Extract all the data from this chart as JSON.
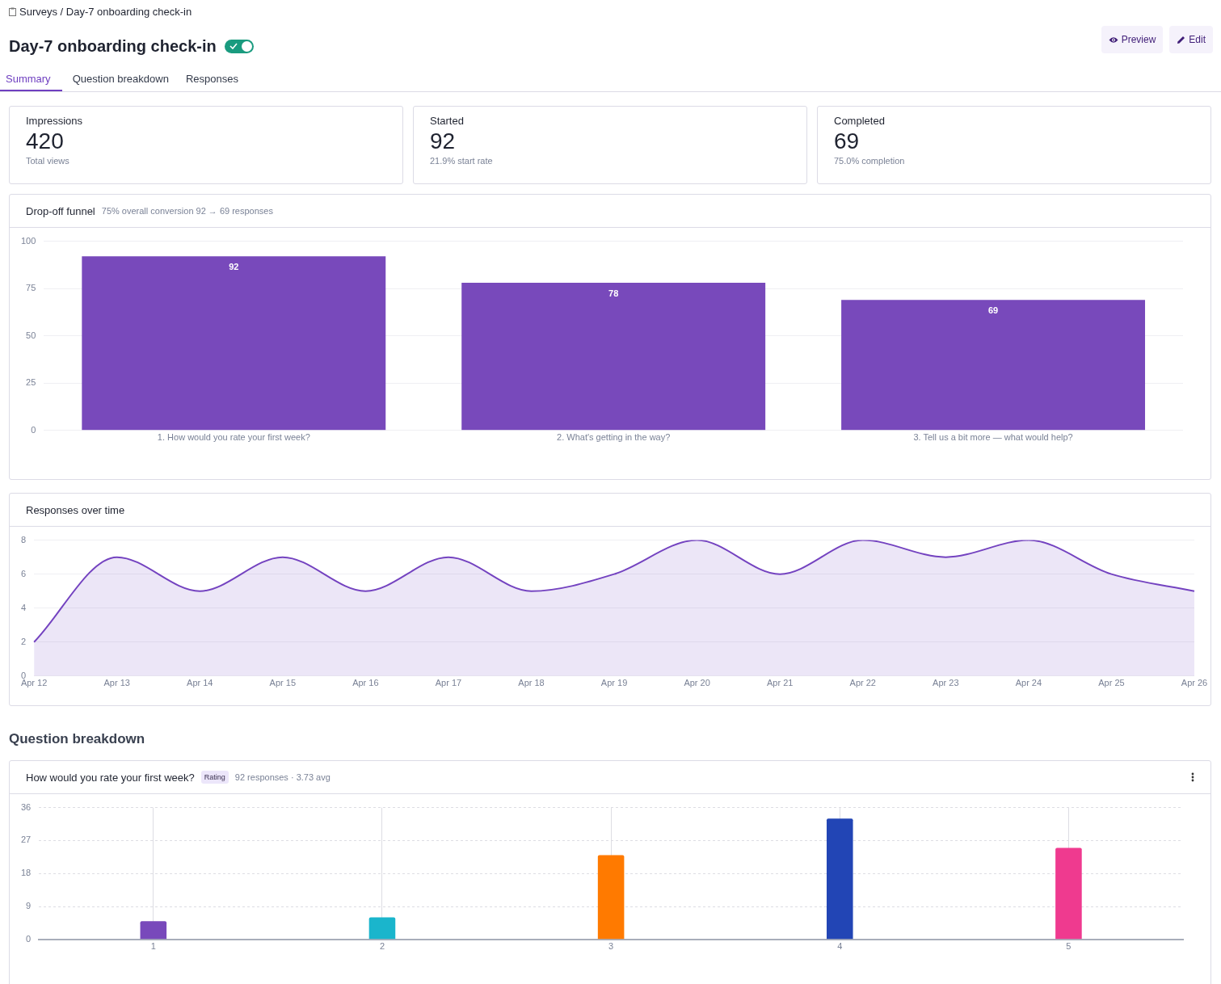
{
  "chart_data": [
    {
      "type": "other",
      "title": "Day-7 onboarding check-in",
      "annotations": [
        "Surveys / Day-7 onboarding check-in",
        "Preview",
        "Edit",
        "Summary",
        "Question breakdown",
        "Responses",
        "Impressions",
        "420",
        "Total views",
        "Started",
        "92",
        "21.9% start rate",
        "Completed",
        "69",
        "75.0% completion"
      ]
    },
    {
      "type": "bar",
      "title": "Drop-off funnel",
      "subtitle": "75% overall conversion 92 → 69 responses",
      "categories": [
        "1. How would you rate your first week?",
        "2. What's getting in the way?",
        "3. Tell us a bit more — what would help?"
      ],
      "values": [
        92,
        78,
        69
      ],
      "color": "#7849bb",
      "ylim": [
        0,
        100
      ],
      "yticks": [
        0,
        25,
        50,
        75,
        100
      ],
      "grid": "y",
      "data_labels": true
    },
    {
      "type": "area",
      "title": "Responses over time",
      "categories": [
        "Apr 12",
        "Apr 13",
        "Apr 14",
        "Apr 15",
        "Apr 16",
        "Apr 17",
        "Apr 18",
        "Apr 19",
        "Apr 20",
        "Apr 21",
        "Apr 22",
        "Apr 23",
        "Apr 24",
        "Apr 25",
        "Apr 26"
      ],
      "values": [
        2,
        7,
        5,
        7,
        5,
        7,
        5,
        6,
        8,
        6,
        8,
        7,
        8,
        6,
        5
      ],
      "color": "#7443c0",
      "ylim": [
        0,
        8
      ],
      "yticks": [
        0,
        2,
        4,
        6,
        8
      ],
      "grid": "y"
    },
    {
      "type": "bar",
      "title": "How would you rate your first week?",
      "subtitle": "92 responses · 3.73 avg",
      "annotations": [
        "Question breakdown",
        "Rating"
      ],
      "categories": [
        "1",
        "2",
        "3",
        "4",
        "5"
      ],
      "values": [
        5,
        6,
        23,
        33,
        25
      ],
      "colors": [
        "#7849bb",
        "#1ab5cc",
        "#ff7a00",
        "#2245b5",
        "#ef3a8f"
      ],
      "ylim": [
        0,
        36
      ],
      "yticks": [
        0,
        9,
        18,
        27,
        36
      ],
      "grid": true
    }
  ]
}
